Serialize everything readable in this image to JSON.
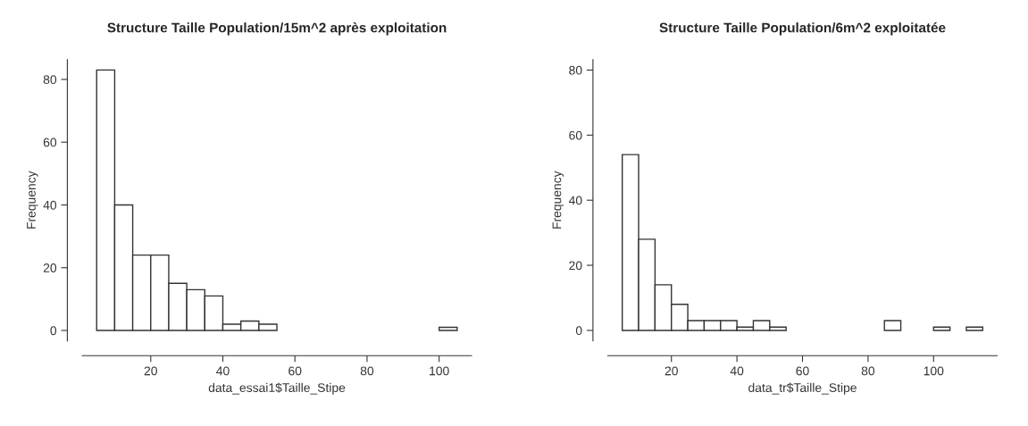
{
  "chart_data": [
    {
      "type": "histogram",
      "title": "Structure Taille Population/15m^2 après exploitation",
      "xlabel": "data_essai1$Taille_Stipe",
      "ylabel": "Frequency",
      "bins": [
        5,
        10,
        15,
        20,
        25,
        30,
        35,
        40,
        45,
        50,
        55,
        60,
        65,
        70,
        75,
        80,
        85,
        90,
        95,
        100,
        105
      ],
      "values": [
        83,
        40,
        24,
        24,
        15,
        13,
        11,
        2,
        3,
        2,
        0,
        0,
        0,
        0,
        0,
        0,
        0,
        0,
        0,
        1
      ],
      "color": "#ffffff",
      "xlim": [
        1,
        109
      ],
      "ylim": [
        -3.3,
        86.3
      ],
      "xticks": [
        20,
        40,
        60,
        80,
        100
      ],
      "yticks": [
        0,
        20,
        40,
        60,
        80
      ],
      "grid": false
    },
    {
      "type": "histogram",
      "title": "Structure Taille Population/6m^2 exploitatée",
      "xlabel": "data_tr$Taille_Stipe",
      "ylabel": "Frequency",
      "bins": [
        5,
        10,
        15,
        20,
        25,
        30,
        35,
        40,
        45,
        50,
        55,
        60,
        65,
        70,
        75,
        80,
        85,
        90,
        95,
        100,
        105,
        110,
        115
      ],
      "values": [
        54,
        28,
        14,
        8,
        3,
        3,
        3,
        1,
        3,
        1,
        0,
        0,
        0,
        0,
        0,
        0,
        3,
        0,
        0,
        1,
        0,
        1
      ],
      "color": "#ffffff",
      "xlim": [
        0.6,
        119.4
      ],
      "ylim": [
        -3.2,
        83.2
      ],
      "xticks": [
        20,
        40,
        60,
        80,
        100
      ],
      "yticks": [
        0,
        20,
        40,
        60,
        80
      ],
      "grid": false
    }
  ]
}
